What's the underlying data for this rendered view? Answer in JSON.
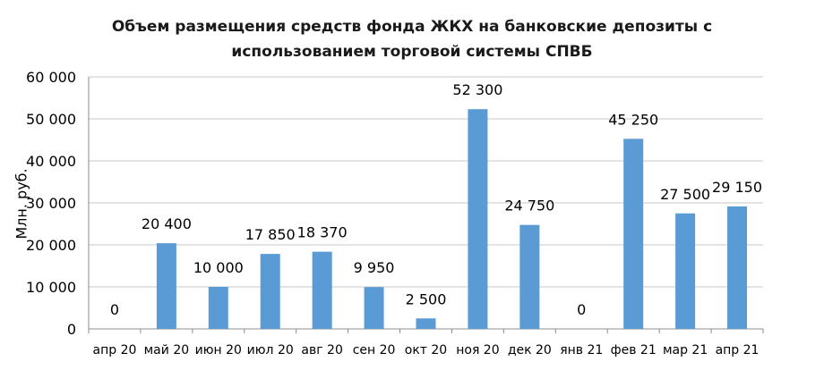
{
  "chart_data": {
    "type": "bar",
    "title_lines": [
      "Объем размещения средств фонда ЖКХ на банковские депозиты с",
      "использованием торговой  системы СПВБ"
    ],
    "xlabel": "",
    "ylabel": "Млн. руб.",
    "categories": [
      "апр 20",
      "май 20",
      "июн 20",
      "июл 20",
      "авг 20",
      "сен 20",
      "окт 20",
      "ноя 20",
      "дек 20",
      "янв 21",
      "фев 21",
      "мар 21",
      "апр 21"
    ],
    "values": [
      0,
      20400,
      10000,
      17850,
      18370,
      9950,
      2500,
      52300,
      24750,
      0,
      45250,
      27500,
      29150
    ],
    "data_labels": [
      "0",
      "20 400",
      "10 000",
      "17 850",
      "18 370",
      "9 950",
      "2 500",
      "52 300",
      "24 750",
      "0",
      "45 250",
      "27 500",
      "29 150"
    ],
    "ylim": [
      0,
      60000
    ],
    "yticks": [
      0,
      10000,
      20000,
      30000,
      40000,
      50000,
      60000
    ],
    "ytick_labels": [
      "0",
      "10 000",
      "20 000",
      "30 000",
      "40 000",
      "50 000",
      "60 000"
    ],
    "grid": true,
    "legend": "none",
    "bar_color": "#5b9bd5"
  }
}
